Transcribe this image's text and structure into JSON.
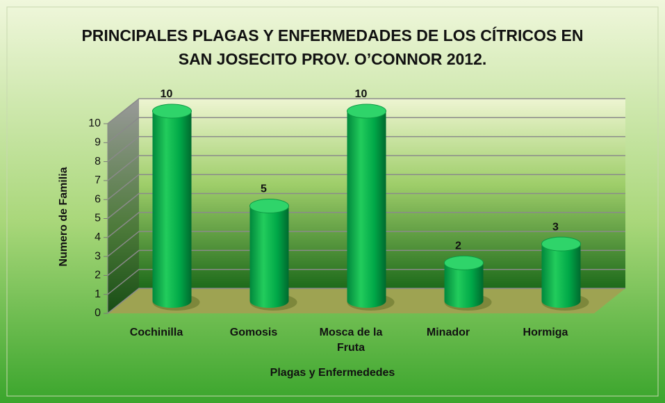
{
  "chart_data": {
    "type": "bar",
    "title": "PRINCIPALES PLAGAS Y ENFERMEDADES DE LOS CÍTRICOS EN SAN JOSECITO PROV. O’CONNOR 2012.",
    "x_label": "Plagas y Enfermededes",
    "y_label": "Numero de Familia",
    "categories": [
      "Cochinilla",
      "Gomosis",
      "Mosca de la Fruta",
      "Minador",
      "Hormiga"
    ],
    "values": [
      10,
      5,
      10,
      2,
      3
    ],
    "color": "#00b050",
    "ylim": [
      0,
      10
    ],
    "yticks": [
      0,
      1,
      2,
      3,
      4,
      5,
      6,
      7,
      8,
      9,
      10
    ],
    "grid": true
  }
}
